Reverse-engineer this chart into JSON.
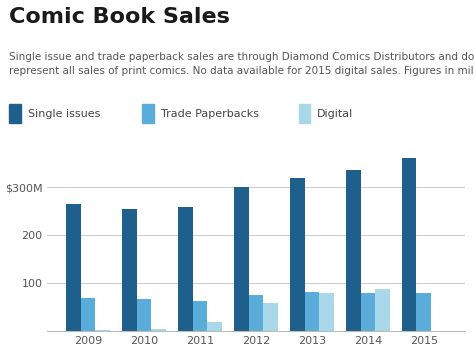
{
  "title": "Comic Book Sales",
  "subtitle": "Single issue and trade paperback sales are through Diamond Comics Distributors and do not\nrepresent all sales of print comics. No data available for 2015 digital sales. Figures in millions.",
  "years": [
    "2009",
    "2010",
    "2011",
    "2012",
    "2013",
    "2014",
    "2015"
  ],
  "single_issues": [
    265,
    255,
    258,
    300,
    320,
    335,
    360
  ],
  "trade_paperbacks": [
    70,
    68,
    62,
    75,
    82,
    80,
    80
  ],
  "digital": [
    2,
    5,
    20,
    58,
    80,
    88,
    null
  ],
  "color_single": "#1f5f8b",
  "color_trade": "#5aacda",
  "color_digital": "#a8d8ea",
  "yticks": [
    100,
    200,
    300
  ],
  "ytick_label_300": "$300M",
  "ylim": [
    0,
    390
  ],
  "background_color": "#ffffff",
  "legend_labels": [
    "Single issues",
    "Trade Paperbacks",
    "Digital"
  ],
  "title_fontsize": 16,
  "subtitle_fontsize": 7.5,
  "legend_fontsize": 8,
  "tick_fontsize": 8
}
